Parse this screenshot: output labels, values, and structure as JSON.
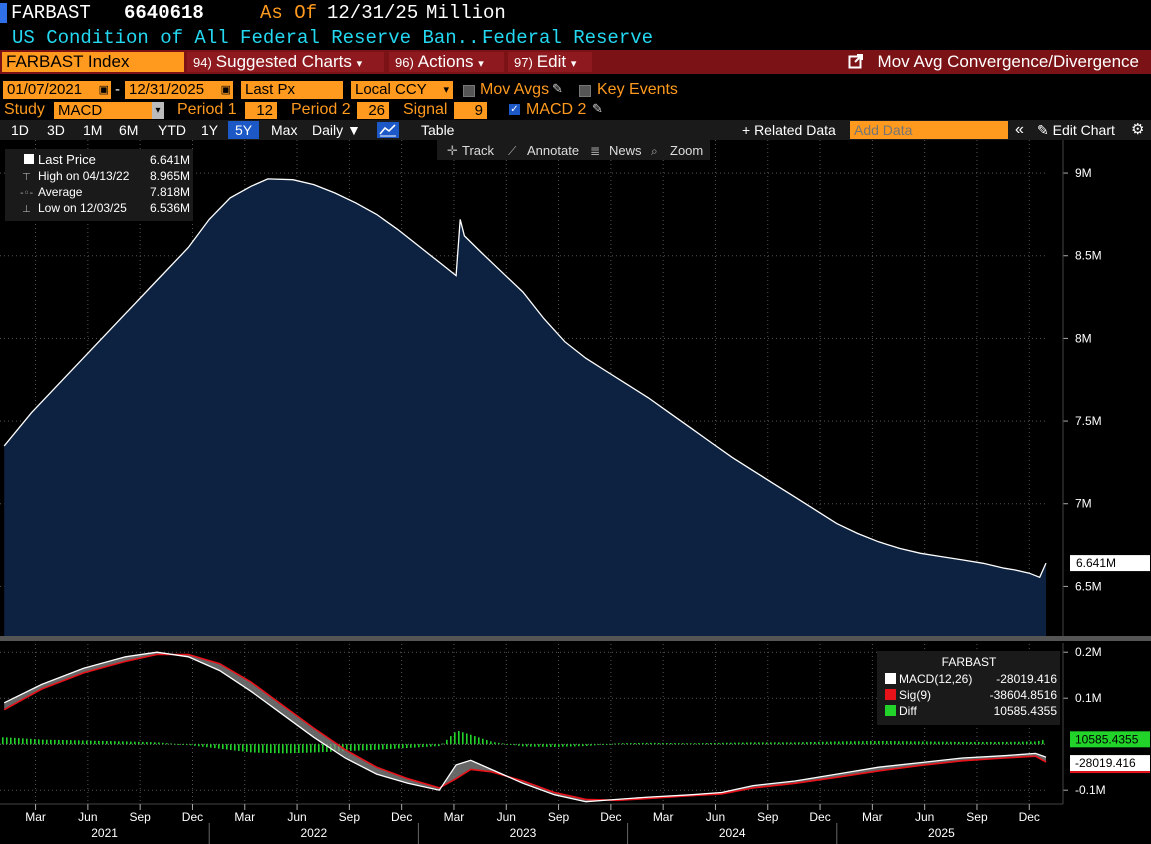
{
  "header": {
    "ticker": "FARBAST",
    "last_value": "6640618",
    "as_of_label": "As Of",
    "as_of_date": "12/31/25",
    "unit": "Million",
    "name": "US Condition of All Federal Reserve Ban...",
    "source": "Federal Reserve"
  },
  "menu": {
    "security": "FARBAST Index",
    "suggested_num": "94)",
    "suggested": "Suggested Charts",
    "actions_num": "96)",
    "actions": "Actions",
    "edit_num": "97)",
    "edit": "Edit",
    "title": "Mov Avg Convergence/Divergence"
  },
  "controls": {
    "start_date": "01/07/2021",
    "dash": "-",
    "end_date": "12/31/2025",
    "field": "Last Px",
    "currency": "Local CCY",
    "mov_avgs": "Mov Avgs",
    "key_events": "Key Events",
    "study_label": "Study",
    "study": "MACD",
    "period1_label": "Period 1",
    "period1": "12",
    "period2_label": "Period 2",
    "period2": "26",
    "signal_label": "Signal",
    "signal": "9",
    "macd2": "MACD 2"
  },
  "periods": [
    "1D",
    "3D",
    "1M",
    "6M",
    "YTD",
    "1Y",
    "5Y",
    "Max"
  ],
  "active_period": "5Y",
  "frequency": "Daily ▼",
  "table_label": "Table",
  "related_data": "+ Related Data",
  "add_data_placeholder": "Add Data",
  "edit_chart": "Edit Chart",
  "tools": {
    "track": "Track",
    "annotate": "Annotate",
    "news": "News",
    "zoom": "Zoom"
  },
  "price_legend": {
    "last_label": "Last Price",
    "last_value": "6.641M",
    "high_label": "High on 04/13/22",
    "high_value": "8.965M",
    "avg_label": "Average",
    "avg_value": "7.818M",
    "low_label": "Low on 12/03/25",
    "low_value": "6.536M"
  },
  "macd_legend": {
    "title": "FARBAST",
    "macd_label": "MACD(12,26)",
    "macd_value": "-28019.416",
    "sig_label": "Sig(9)",
    "sig_value": "-38604.8516",
    "diff_label": "Diff",
    "diff_value": "10585.4355"
  },
  "colors": {
    "area": "#0c2240",
    "line": "#ffffff",
    "macd": "#ffffff",
    "signal": "#e8121a",
    "diff": "#22d42a",
    "accent": "#ff9a1f"
  },
  "chart_data": [
    {
      "type": "area",
      "title": "FARBAST Index",
      "unit": "Million",
      "ylim": [
        6.2,
        9.2
      ],
      "yticks": [
        {
          "v": 9,
          "label": "9M"
        },
        {
          "v": 8.5,
          "label": "8.5M"
        },
        {
          "v": 8,
          "label": "8M"
        },
        {
          "v": 7.5,
          "label": "7.5M"
        },
        {
          "v": 7,
          "label": "7M"
        },
        {
          "v": 6.5,
          "label": "6.5M"
        }
      ],
      "last_label": "6.641M",
      "x": [
        2021.02,
        2021.15,
        2021.3,
        2021.45,
        2021.6,
        2021.75,
        2021.9,
        2022.0,
        2022.1,
        2022.2,
        2022.28,
        2022.4,
        2022.5,
        2022.6,
        2022.7,
        2022.8,
        2022.9,
        2023.0,
        2023.1,
        2023.18,
        2023.2,
        2023.22,
        2023.3,
        2023.4,
        2023.5,
        2023.6,
        2023.7,
        2023.8,
        2023.9,
        2024.0,
        2024.1,
        2024.2,
        2024.3,
        2024.4,
        2024.5,
        2024.6,
        2024.7,
        2024.8,
        2024.9,
        2025.0,
        2025.1,
        2025.2,
        2025.3,
        2025.4,
        2025.5,
        2025.6,
        2025.7,
        2025.8,
        2025.85,
        2025.92,
        2025.97,
        2026.0
      ],
      "y": [
        7.35,
        7.55,
        7.75,
        7.95,
        8.15,
        8.35,
        8.55,
        8.72,
        8.85,
        8.92,
        8.965,
        8.96,
        8.93,
        8.88,
        8.82,
        8.75,
        8.66,
        8.56,
        8.46,
        8.38,
        8.72,
        8.62,
        8.52,
        8.4,
        8.28,
        8.12,
        7.98,
        7.88,
        7.8,
        7.72,
        7.64,
        7.55,
        7.46,
        7.37,
        7.28,
        7.2,
        7.12,
        7.04,
        6.96,
        6.88,
        6.82,
        6.77,
        6.73,
        6.7,
        6.68,
        6.66,
        6.64,
        6.61,
        6.6,
        6.58,
        6.555,
        6.641
      ]
    },
    {
      "type": "line",
      "title": "MACD(12,26)",
      "ylim": [
        -0.13,
        0.22
      ],
      "yticks": [
        {
          "v": 0.2,
          "label": "0.2M"
        },
        {
          "v": 0.1,
          "label": "0.1M"
        },
        {
          "v": -0.1,
          "label": "-0.1M"
        }
      ],
      "x": [
        2021.02,
        2021.2,
        2021.4,
        2021.6,
        2021.75,
        2021.9,
        2022.05,
        2022.2,
        2022.35,
        2022.5,
        2022.65,
        2022.8,
        2022.95,
        2023.1,
        2023.18,
        2023.25,
        2023.35,
        2023.5,
        2023.65,
        2023.8,
        2023.95,
        2024.1,
        2024.3,
        2024.45,
        2024.6,
        2024.8,
        2025.0,
        2025.2,
        2025.4,
        2025.6,
        2025.8,
        2025.95,
        2026.0
      ],
      "series": [
        {
          "name": "MACD(12,26)",
          "values": [
            0.09,
            0.13,
            0.165,
            0.19,
            0.2,
            0.19,
            0.16,
            0.115,
            0.065,
            0.015,
            -0.03,
            -0.065,
            -0.085,
            -0.1,
            -0.045,
            -0.035,
            -0.055,
            -0.085,
            -0.11,
            -0.125,
            -0.12,
            -0.115,
            -0.11,
            -0.105,
            -0.09,
            -0.08,
            -0.065,
            -0.05,
            -0.04,
            -0.03,
            -0.025,
            -0.02,
            -0.028
          ]
        },
        {
          "name": "Sig(9)",
          "values": [
            0.075,
            0.12,
            0.155,
            0.18,
            0.195,
            0.195,
            0.175,
            0.135,
            0.085,
            0.035,
            -0.012,
            -0.05,
            -0.075,
            -0.095,
            -0.075,
            -0.055,
            -0.06,
            -0.08,
            -0.105,
            -0.12,
            -0.122,
            -0.118,
            -0.112,
            -0.108,
            -0.095,
            -0.085,
            -0.072,
            -0.058,
            -0.046,
            -0.036,
            -0.03,
            -0.026,
            -0.0386
          ]
        },
        {
          "name": "Diff",
          "values": [
            0.015,
            0.01,
            0.008,
            0.006,
            0.004,
            -0.002,
            -0.01,
            -0.018,
            -0.02,
            -0.018,
            -0.015,
            -0.012,
            -0.008,
            -0.004,
            0.03,
            0.02,
            0.005,
            -0.005,
            -0.006,
            -0.004,
            0.002,
            0.003,
            0.002,
            0.003,
            0.004,
            0.004,
            0.006,
            0.007,
            0.006,
            0.005,
            0.005,
            0.006,
            0.0106
          ]
        }
      ],
      "last_labels": [
        "10585.4355",
        "-28019.416"
      ]
    }
  ],
  "x_axis": {
    "months": [
      {
        "t": 2021.17,
        "label": "Mar"
      },
      {
        "t": 2021.42,
        "label": "Jun"
      },
      {
        "t": 2021.67,
        "label": "Sep"
      },
      {
        "t": 2021.92,
        "label": "Dec"
      },
      {
        "t": 2022.17,
        "label": "Mar"
      },
      {
        "t": 2022.42,
        "label": "Jun"
      },
      {
        "t": 2022.67,
        "label": "Sep"
      },
      {
        "t": 2022.92,
        "label": "Dec"
      },
      {
        "t": 2023.17,
        "label": "Mar"
      },
      {
        "t": 2023.42,
        "label": "Jun"
      },
      {
        "t": 2023.67,
        "label": "Sep"
      },
      {
        "t": 2023.92,
        "label": "Dec"
      },
      {
        "t": 2024.17,
        "label": "Mar"
      },
      {
        "t": 2024.42,
        "label": "Jun"
      },
      {
        "t": 2024.67,
        "label": "Sep"
      },
      {
        "t": 2024.92,
        "label": "Dec"
      },
      {
        "t": 2025.17,
        "label": "Mar"
      },
      {
        "t": 2025.42,
        "label": "Jun"
      },
      {
        "t": 2025.67,
        "label": "Sep"
      },
      {
        "t": 2025.92,
        "label": "Dec"
      }
    ],
    "years": [
      {
        "t": 2021.5,
        "label": "2021"
      },
      {
        "t": 2022.5,
        "label": "2022"
      },
      {
        "t": 2023.5,
        "label": "2023"
      },
      {
        "t": 2024.5,
        "label": "2024"
      },
      {
        "t": 2025.5,
        "label": "2025"
      }
    ]
  }
}
